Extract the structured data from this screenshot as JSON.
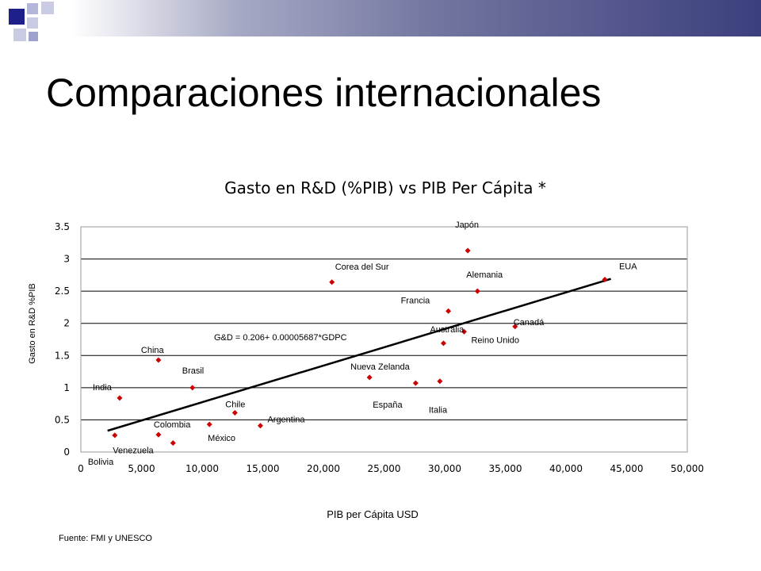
{
  "slide": {
    "title": "Comparaciones internacionales",
    "source": "Fuente: FMI y UNESCO"
  },
  "chart_data": {
    "type": "scatter",
    "title": "Gasto en R&D (%PIB) vs PIB Per Cápita *",
    "xlabel": "PIB per Cápita USD",
    "ylabel": "Gasto en R&D %PIB",
    "xlim": [
      0,
      50000
    ],
    "ylim": [
      0,
      3.5
    ],
    "xticks": [
      "0",
      "5,000",
      "10,000",
      "15,000",
      "20,000",
      "25,000",
      "30,000",
      "35,000",
      "40,000",
      "45,000",
      "50,000"
    ],
    "yticks": [
      "0",
      "0.5",
      "1",
      "1.5",
      "2",
      "2.5",
      "3",
      "3.5"
    ],
    "grid": "horizontal",
    "marker_color": "#cc0000",
    "trend_color": "#000000",
    "points": [
      {
        "label": "Japón",
        "x": 31900,
        "y": 3.13
      },
      {
        "label": "EUA",
        "x": 43200,
        "y": 2.68
      },
      {
        "label": "Corea del Sur",
        "x": 20700,
        "y": 2.64
      },
      {
        "label": "Alemania",
        "x": 32700,
        "y": 2.5
      },
      {
        "label": "Francia",
        "x": 30300,
        "y": 2.19
      },
      {
        "label": "Canadá",
        "x": 35800,
        "y": 1.95
      },
      {
        "label": "Reino Unido",
        "x": 31600,
        "y": 1.87
      },
      {
        "label": "Australia",
        "x": 29900,
        "y": 1.69
      },
      {
        "label": "Nueva Zelanda",
        "x": 23800,
        "y": 1.16
      },
      {
        "label": "España",
        "x": 27600,
        "y": 1.07
      },
      {
        "label": "Italia",
        "x": 29600,
        "y": 1.1
      },
      {
        "label": "China",
        "x": 6400,
        "y": 1.43
      },
      {
        "label": "India",
        "x": 3200,
        "y": 0.84
      },
      {
        "label": "Brasil",
        "x": 9200,
        "y": 1.0
      },
      {
        "label": "Chile",
        "x": 12700,
        "y": 0.61
      },
      {
        "label": "Argentina",
        "x": 14800,
        "y": 0.41
      },
      {
        "label": "México",
        "x": 10600,
        "y": 0.43
      },
      {
        "label": "Colombia",
        "x": 6400,
        "y": 0.27
      },
      {
        "label": "Venezuela",
        "x": 7600,
        "y": 0.14
      },
      {
        "label": "Bolivia",
        "x": 2800,
        "y": 0.26
      }
    ],
    "trendline": {
      "label": "G&D = 0.206+ 0.00005687*GDPC",
      "x_range": [
        2200,
        43700
      ]
    }
  }
}
